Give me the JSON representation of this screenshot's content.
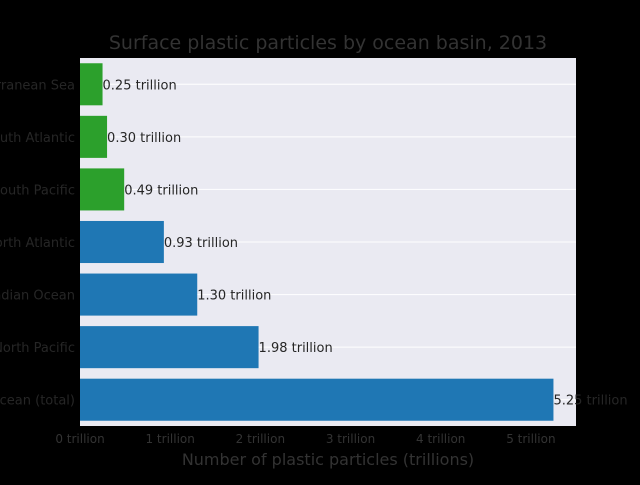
{
  "chart_data": {
    "type": "bar",
    "orientation": "horizontal",
    "title": "Surface plastic particles by ocean basin, 2013",
    "xlabel": "Number of plastic particles (trillions)",
    "ylabel": "",
    "xlim": [
      0,
      5.5
    ],
    "xticks": [
      0,
      1,
      2,
      3,
      4,
      5
    ],
    "xtick_labels": [
      "0 trillion",
      "1 trillion",
      "2 trillion",
      "3 trillion",
      "4 trillion",
      "5 trillion"
    ],
    "grid": "horizontal",
    "categories": [
      "World Ocean (total)",
      "North Pacific",
      "Indian Ocean",
      "North Atlantic",
      "South Pacific",
      "South Atlantic",
      "Mediterranean Sea"
    ],
    "values": [
      5.25,
      1.98,
      1.3,
      0.93,
      0.49,
      0.3,
      0.25
    ],
    "value_labels": [
      "5.25 trillion",
      "1.98 trillion",
      "1.30 trillion",
      "0.93 trillion",
      "0.49 trillion",
      "0.30 trillion",
      "0.25 trillion"
    ],
    "bar_colors": [
      "#1f77b4",
      "#1f77b4",
      "#1f77b4",
      "#1f77b4",
      "#2ca02c",
      "#2ca02c",
      "#2ca02c"
    ],
    "colors": {
      "figure_background": "#000000",
      "plot_background": "#eaeaf2",
      "grid": "#ffffff",
      "text": "#333333",
      "label_text": "#262626"
    }
  }
}
